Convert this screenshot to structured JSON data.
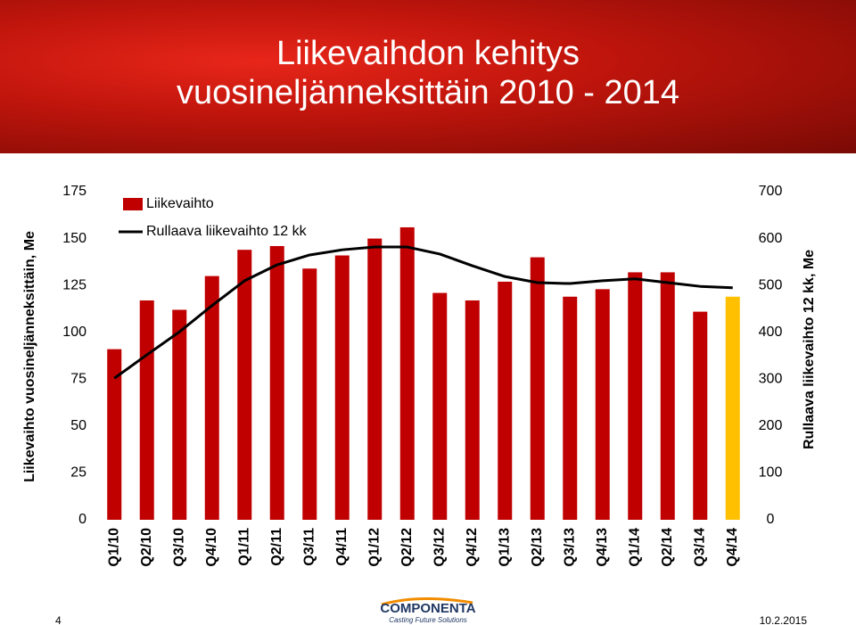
{
  "chart_data": {
    "type": "bar_line",
    "title": "Liikevaihdon kehitys",
    "subtitle": "vuosineljänneksittäin 2010 - 2014",
    "y_label": "Liikevaihto vuosineljänneksittäin, Me",
    "y2_label": "Rullaava liikevaihto 12 kk, Me",
    "categories": [
      "Q1/10",
      "Q2/10",
      "Q3/10",
      "Q4/10",
      "Q1/11",
      "Q2/11",
      "Q3/11",
      "Q4/11",
      "Q1/12",
      "Q2/12",
      "Q3/12",
      "Q4/12",
      "Q1/13",
      "Q2/13",
      "Q3/13",
      "Q4/13",
      "Q1/14",
      "Q2/14",
      "Q3/14",
      "Q4/14"
    ],
    "series": [
      {
        "name": "Liikevaihto",
        "kind": "bar",
        "color": "#c00000",
        "colors": [
          "#c00000",
          "#c00000",
          "#c00000",
          "#c00000",
          "#c00000",
          "#c00000",
          "#c00000",
          "#c00000",
          "#c00000",
          "#c00000",
          "#c00000",
          "#c00000",
          "#c00000",
          "#c00000",
          "#c00000",
          "#c00000",
          "#c00000",
          "#c00000",
          "#c00000",
          "#ffc000"
        ],
        "values": [
          91,
          117,
          112,
          130,
          144,
          146,
          134,
          141,
          150,
          156,
          121,
          117,
          127,
          140,
          119,
          123,
          132,
          132,
          111,
          119
        ]
      },
      {
        "name": "Rullaava liikevaihto 12 kk",
        "kind": "line",
        "color": "#000000",
        "axis": "y2",
        "values": [
          302,
          352,
          401,
          457,
          510,
          544,
          565,
          576,
          582,
          582,
          567,
          542,
          519,
          506,
          504,
          510,
          514,
          506,
          498,
          495
        ]
      }
    ],
    "ylim": [
      0,
      175
    ],
    "yticks": [
      0,
      25,
      50,
      75,
      100,
      125,
      150,
      175
    ],
    "y2lim": [
      0,
      700
    ],
    "y2ticks": [
      0,
      100,
      200,
      300,
      400,
      500,
      600,
      700
    ]
  },
  "footer": {
    "page": "4",
    "logo": "COMPONENTA",
    "tagline": "Casting Future Solutions",
    "date": "10.2.2015"
  }
}
